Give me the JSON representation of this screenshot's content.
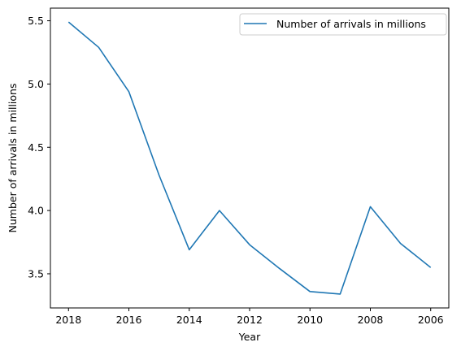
{
  "chart_data": {
    "type": "line",
    "xlabel": "Year",
    "ylabel": "Number of arrivals in millions",
    "x_inverted": true,
    "xlim": [
      2018.6,
      2005.4
    ],
    "ylim": [
      3.23,
      5.6
    ],
    "x_ticks": [
      2018,
      2016,
      2014,
      2012,
      2010,
      2008,
      2006
    ],
    "x_tick_labels": [
      "2018",
      "2016",
      "2014",
      "2012",
      "2010",
      "2008",
      "2006"
    ],
    "y_ticks": [
      3.5,
      4.0,
      4.5,
      5.0,
      5.5
    ],
    "y_tick_labels": [
      "3.5",
      "4.0",
      "4.5",
      "5.0",
      "5.5"
    ],
    "grid": false,
    "legend_position": "top-right",
    "series": [
      {
        "name": "Number of arrivals in millions",
        "color": "#1f77b4",
        "x": [
          2018,
          2017,
          2016,
          2015,
          2014,
          2013,
          2012,
          2011,
          2010,
          2009,
          2008,
          2007,
          2006
        ],
        "y": [
          5.49,
          5.29,
          4.94,
          4.28,
          3.69,
          4.0,
          3.73,
          3.54,
          3.36,
          3.34,
          4.03,
          3.74,
          3.55
        ]
      }
    ]
  }
}
